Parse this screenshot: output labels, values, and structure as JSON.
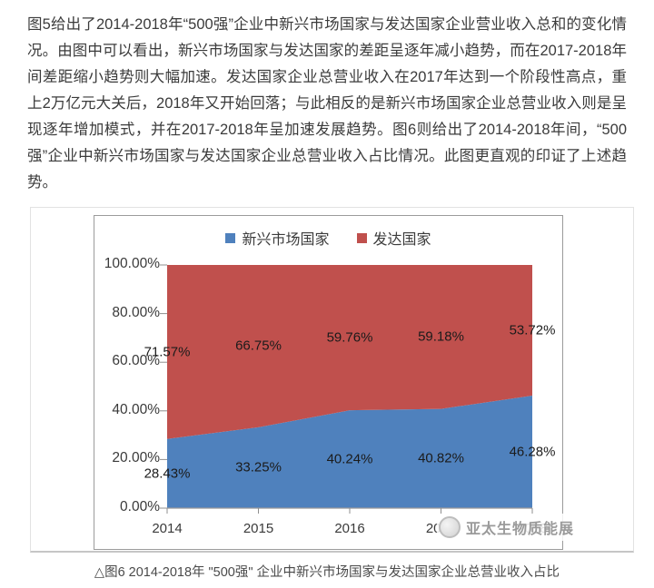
{
  "intro": {
    "text": "图5给出了2014-2018年“500强”企业中新兴市场国家与发达国家企业营业收入总和的变化情况。由图中可以看出，新兴市场国家与发达国家的差距呈逐年减小趋势，而在2017-2018年间差距缩小趋势则大幅加速。发达国家企业总营业收入在2017年达到一个阶段性高点，重上2万亿元大关后，2018年又开始回落；与此相反的是新兴市场国家企业总营业收入则是呈现逐年增加模式，并在2017-2018年呈加速发展趋势。图6则给出了2014-2018年间，“500强”企业中新兴市场国家与发达国家企业总营业收入占比情况。此图更直观的印证了上述趋势。"
  },
  "chart_data": {
    "type": "area",
    "stacked": true,
    "x_categories": [
      "2014",
      "2015",
      "2016",
      "2017",
      "2018"
    ],
    "series": [
      {
        "name": "新兴市场国家",
        "color": "#4F81BD",
        "values": [
          28.43,
          33.25,
          40.24,
          40.82,
          46.28
        ]
      },
      {
        "name": "发达国家",
        "color": "#C0504D",
        "values": [
          71.57,
          66.75,
          59.76,
          59.18,
          53.72
        ]
      }
    ],
    "ylim": [
      0,
      100
    ],
    "ytick_labels": [
      "0.00%",
      "20.00%",
      "40.00%",
      "60.00%",
      "80.00%",
      "100.00%"
    ],
    "legend_position": "top-center",
    "grid": false,
    "data_labels": "percent-2dp",
    "title": "",
    "xlabel": "",
    "ylabel": ""
  },
  "watermark": {
    "text": "亚太生物质能展"
  },
  "caption": {
    "text": "△图6 2014-2018年 \"500强\" 企业中新兴市场国家与发达国家企业总营业收入占比"
  }
}
